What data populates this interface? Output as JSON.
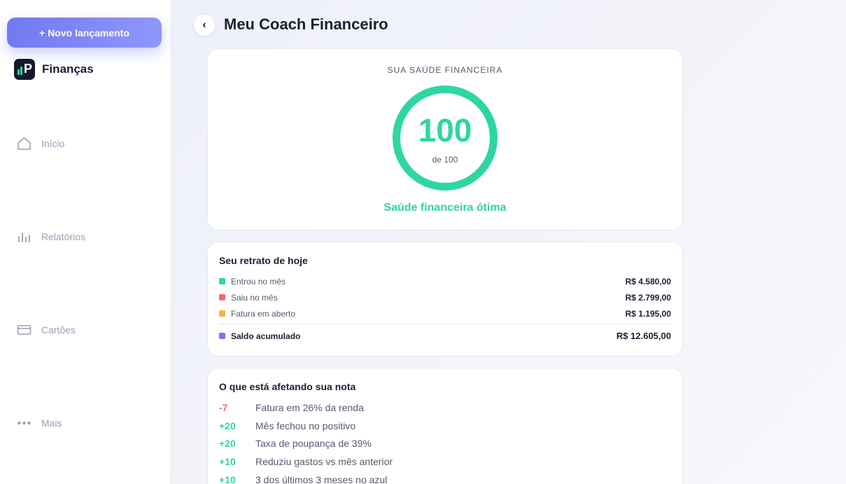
{
  "sidebar": {
    "new_button_label": "+ Novo lançamento",
    "brand": {
      "logo_letter": "P",
      "name": "Finanças"
    },
    "nav": [
      {
        "label": "Início",
        "icon": "home-icon"
      },
      {
        "label": "Relatórios",
        "icon": "bar-chart-icon"
      },
      {
        "label": "Cartões",
        "icon": "credit-card-icon"
      },
      {
        "label": "Mais",
        "icon": "more-dots-icon"
      }
    ]
  },
  "header": {
    "back_icon": "‹",
    "title": "Meu Coach Financeiro"
  },
  "health": {
    "label": "SUA SAÚDE FINANCEIRA",
    "score": "100",
    "score_max_text": "de 100",
    "status": "Saúde financeira ótima",
    "score_fraction": 1.0,
    "accent_color": "#2fd6a3"
  },
  "snapshot": {
    "title": "Seu retrato de hoje",
    "rows": [
      {
        "label": "Entrou no mês",
        "value": "R$ 4.580,00",
        "color": "#2fd6a3"
      },
      {
        "label": "Saiu no mês",
        "value": "R$ 2.799,00",
        "color": "#ef6b6b"
      },
      {
        "label": "Fatura em aberto",
        "value": "R$ 1.195,00",
        "color": "#f5b544"
      }
    ],
    "total": {
      "label": "Saldo acumulado",
      "value": "R$ 12.605,00",
      "color": "#7179f0"
    }
  },
  "factors": {
    "title": "O que está afetando sua nota",
    "items": [
      {
        "score": "-7",
        "text": "Fatura em 26% da renda"
      },
      {
        "score": "+20",
        "text": "Mês fechou no positivo"
      },
      {
        "score": "+20",
        "text": "Taxa de poupança de 39%"
      },
      {
        "score": "+10",
        "text": "Reduziu gastos vs mês anterior"
      },
      {
        "score": "+10",
        "text": "3 dos últimos 3 meses no azul"
      }
    ]
  }
}
